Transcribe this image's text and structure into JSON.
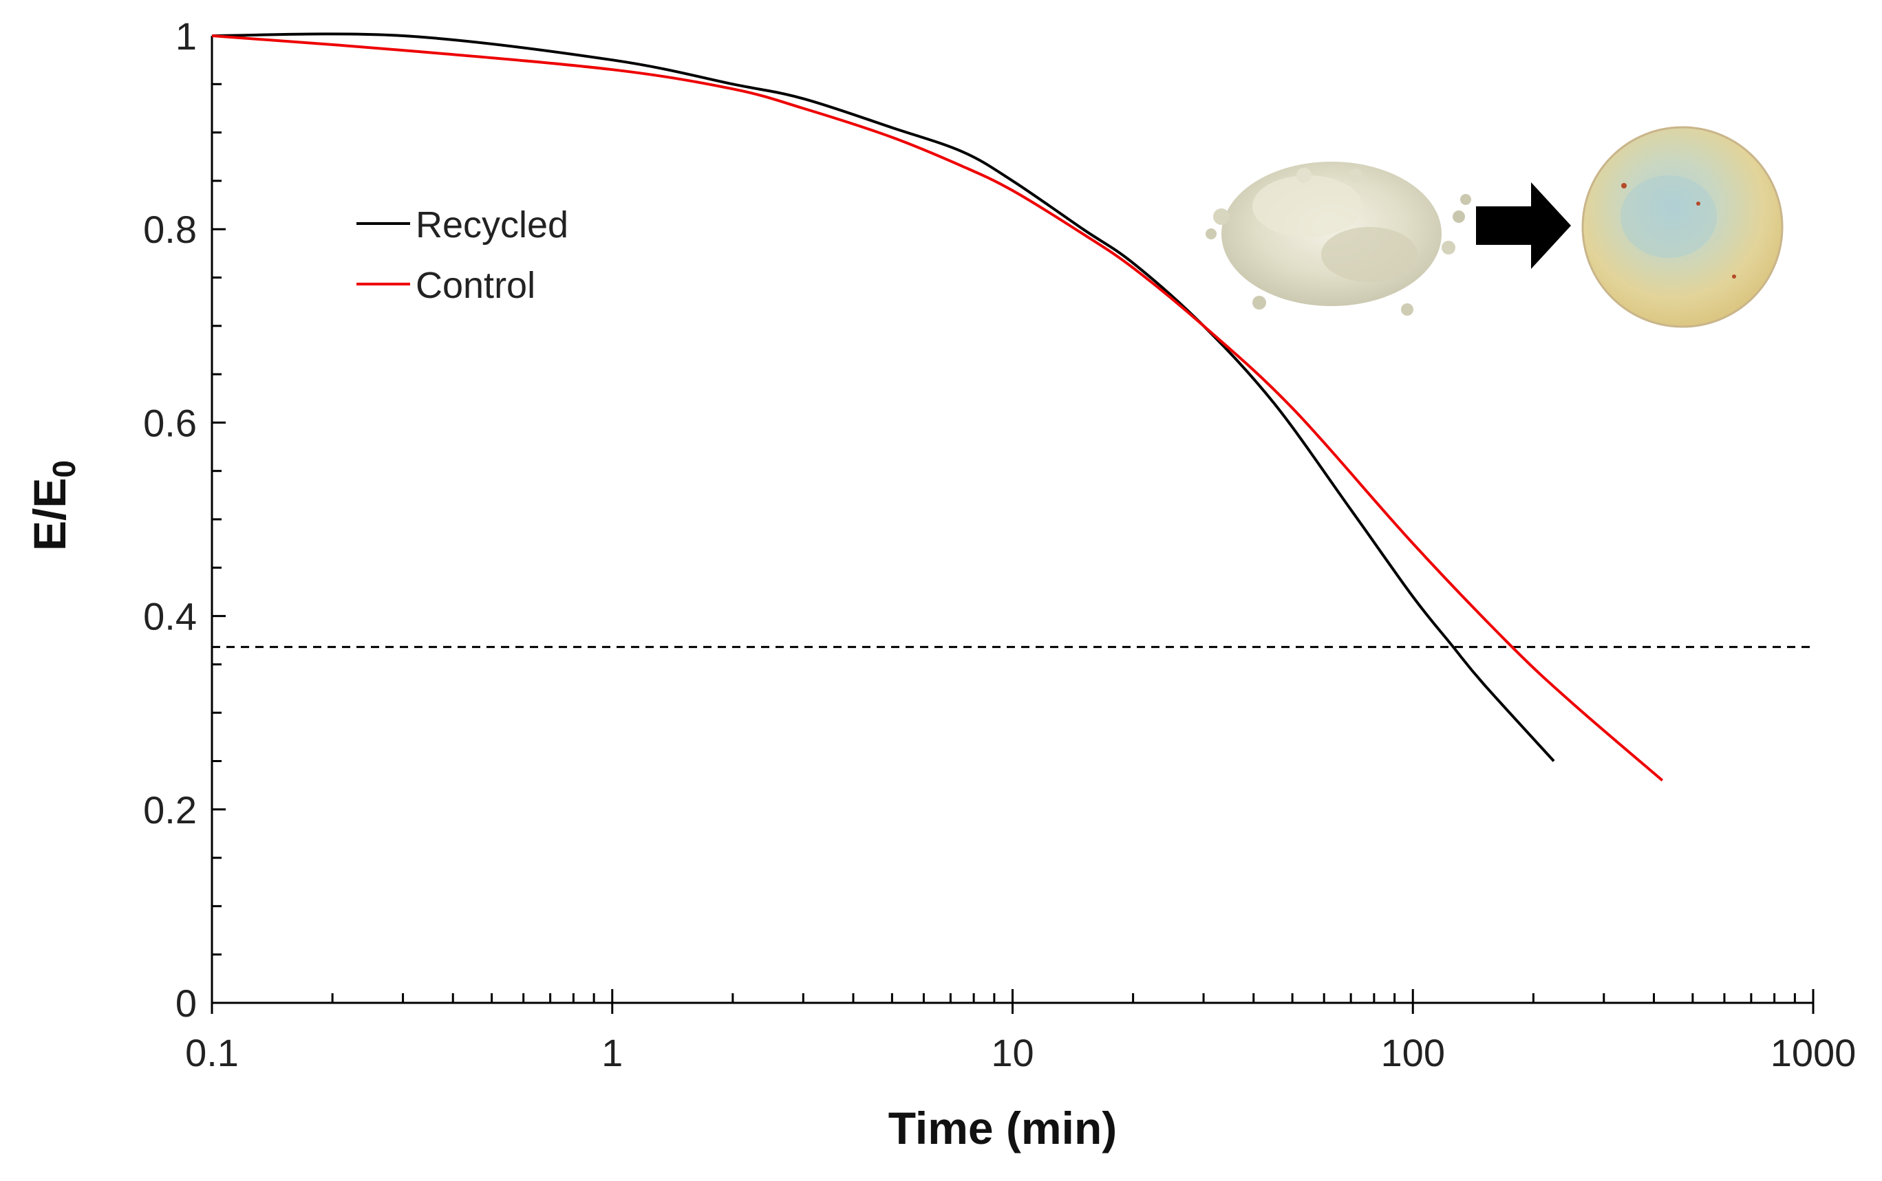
{
  "chart_data": {
    "type": "line",
    "title": "",
    "xlabel": "Time (min)",
    "ylabel": "E/E",
    "ylabel_subscript": "0",
    "xscale": "log",
    "xlim": [
      0.1,
      1000
    ],
    "ylim": [
      0,
      1
    ],
    "grid": false,
    "x_ticks": [
      0.1,
      1,
      10,
      100,
      1000
    ],
    "x_tick_labels": [
      "0.1",
      "1",
      "10",
      "100",
      "1000"
    ],
    "y_ticks": [
      0,
      0.2,
      0.4,
      0.6,
      0.8,
      1
    ],
    "y_tick_labels": [
      "0",
      "0.2",
      "0.4",
      "0.6",
      "0.8",
      "1"
    ],
    "legend_position": "top-left",
    "series": [
      {
        "name": "Recycled",
        "color": "#000000",
        "x": [
          0.1,
          0.3,
          1,
          2,
          3,
          5,
          7.5,
          10,
          15,
          20,
          30,
          45,
          70,
          100,
          125,
          150,
          225
        ],
        "y": [
          1.0,
          1.0,
          0.975,
          0.95,
          0.935,
          0.905,
          0.88,
          0.85,
          0.8,
          0.765,
          0.7,
          0.62,
          0.51,
          0.42,
          0.37,
          0.33,
          0.25
        ]
      },
      {
        "name": "Control",
        "color": "#ee0000",
        "x": [
          0.1,
          0.3,
          1,
          2,
          3,
          5,
          7.5,
          10,
          15,
          20,
          30,
          50,
          100,
          175,
          250,
          420
        ],
        "y": [
          1.0,
          0.985,
          0.965,
          0.945,
          0.925,
          0.895,
          0.865,
          0.84,
          0.795,
          0.76,
          0.7,
          0.615,
          0.475,
          0.37,
          0.31,
          0.23
        ]
      }
    ],
    "reference_line": {
      "y": 0.368,
      "style": "dashed",
      "color": "#000000"
    }
  },
  "inset": {
    "description_icons": [
      "pellets-image",
      "arrow-icon",
      "disc-image"
    ]
  }
}
